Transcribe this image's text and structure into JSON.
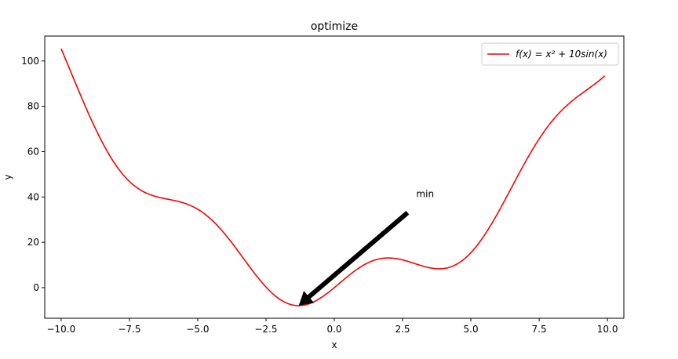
{
  "chart_data": {
    "type": "line",
    "title": "optimize",
    "xlabel": "x",
    "ylabel": "y",
    "xlim": [
      -10.6,
      10.6
    ],
    "ylim": [
      -13.5,
      111
    ],
    "xticks": [
      -10.0,
      -7.5,
      -5.0,
      -2.5,
      0.0,
      2.5,
      5.0,
      7.5,
      10.0
    ],
    "xtick_labels": [
      "−10.0",
      "−7.5",
      "−5.0",
      "−2.5",
      "0.0",
      "2.5",
      "5.0",
      "7.5",
      "10.0"
    ],
    "yticks": [
      0,
      20,
      40,
      60,
      80,
      100
    ],
    "ytick_labels": [
      "0",
      "20",
      "40",
      "60",
      "80",
      "100"
    ],
    "grid": false,
    "legend_position": "top-right",
    "series": [
      {
        "name": "f(x) = x² + 10sin(x)",
        "color": "#ff0000",
        "function": "x^2 + 10*sin(x)",
        "x_range": [
          -10.0,
          9.9
        ]
      }
    ],
    "annotations": [
      {
        "text": "min",
        "xy": [
          -1.3,
          -7.9
        ],
        "xytext": [
          3.0,
          40.0
        ],
        "arrow_color": "#000000"
      }
    ]
  }
}
